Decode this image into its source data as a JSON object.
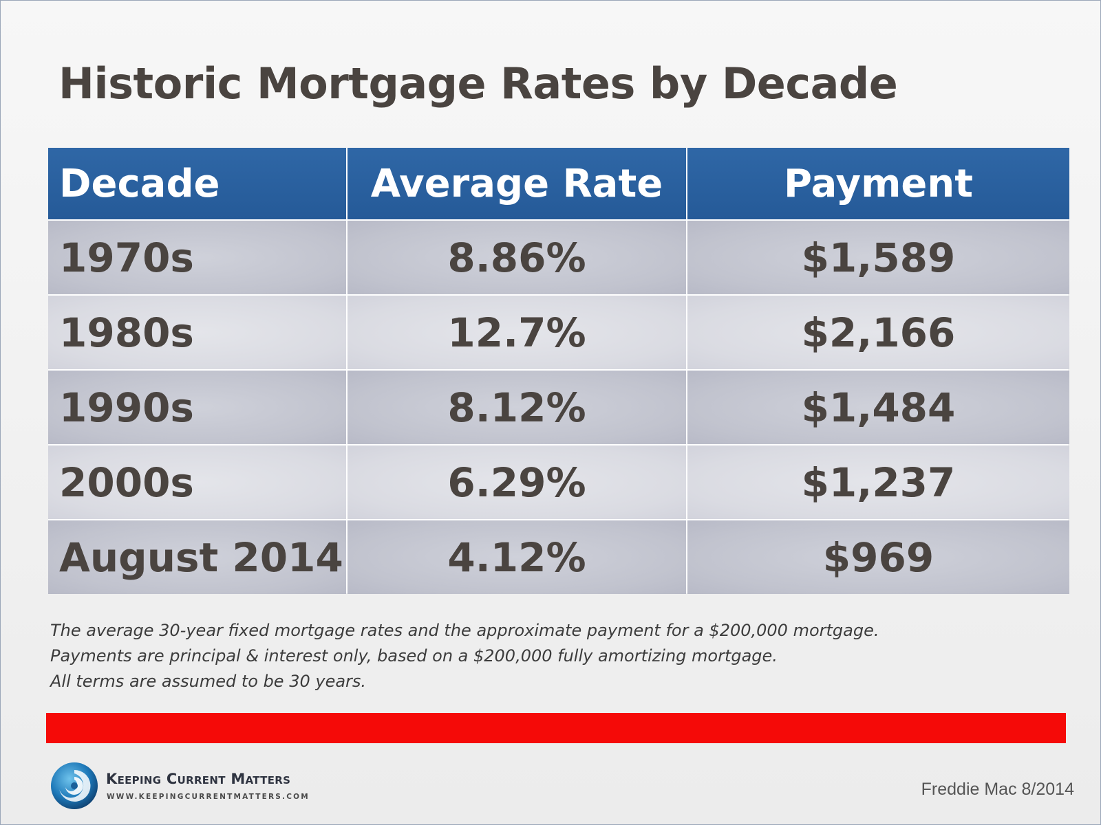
{
  "title": "Historic Mortgage Rates by Decade",
  "chart_data": {
    "type": "table",
    "title": "Historic Mortgage Rates by Decade",
    "columns": [
      "Decade",
      "Average Rate",
      "Payment"
    ],
    "rows": [
      {
        "decade": "1970s",
        "rate": "8.86%",
        "payment": "$1,589"
      },
      {
        "decade": "1980s",
        "rate": "12.7%",
        "payment": "$2,166"
      },
      {
        "decade": "1990s",
        "rate": "8.12%",
        "payment": "$1,484"
      },
      {
        "decade": "2000s",
        "rate": "6.29%",
        "payment": "$1,237"
      },
      {
        "decade": "August 2014",
        "rate": "4.12%",
        "payment": "$969"
      }
    ]
  },
  "notes": [
    "The average 30-year fixed mortgage rates and the approximate payment for a $200,000 mortgage.",
    "Payments are principal & interest only, based on a $200,000 fully amortizing mortgage.",
    "All terms are assumed to be 30 years."
  ],
  "brand": {
    "name": "Keeping Current Matters",
    "url": "www.keepingcurrentmatters.com"
  },
  "source": "Freddie Mac 8/2014",
  "colors": {
    "header": "#2a5f9e",
    "accent_bar": "#f50a08",
    "text": "#4a4440"
  }
}
